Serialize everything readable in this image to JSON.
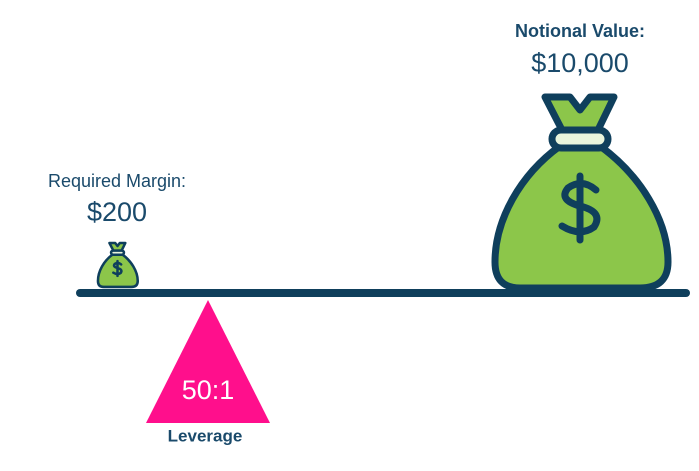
{
  "margin": {
    "label": "Required Margin:",
    "amount": "$200"
  },
  "notional": {
    "label": "Notional Value:",
    "amount": "$10,000"
  },
  "fulcrum": {
    "ratio": "50:1",
    "label": "Leverage"
  }
}
